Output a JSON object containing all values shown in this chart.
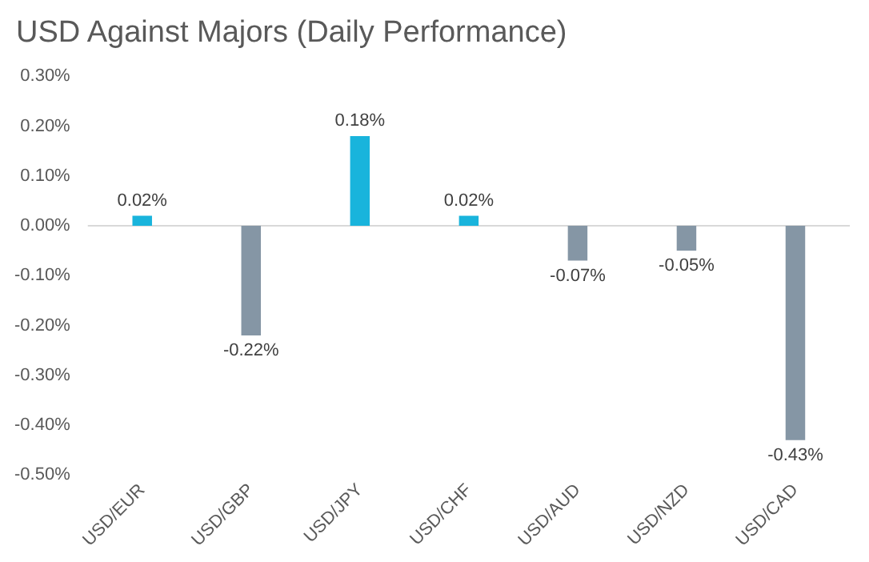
{
  "chart_data": {
    "type": "bar",
    "title": "USD Against Majors (Daily Performance)",
    "categories": [
      "USD/EUR",
      "USD/GBP",
      "USD/JPY",
      "USD/CHF",
      "USD/AUD",
      "USD/NZD",
      "USD/CAD"
    ],
    "values": [
      0.02,
      -0.22,
      0.18,
      0.02,
      -0.07,
      -0.05,
      -0.43
    ],
    "colors": [
      "#19b4dc",
      "#8596a5",
      "#19b4dc",
      "#19b4dc",
      "#8596a5",
      "#8596a5",
      "#8596a5"
    ],
    "value_labels": [
      "0.02%",
      "-0.22%",
      "0.18%",
      "0.02%",
      "-0.07%",
      "-0.05%",
      "-0.43%"
    ],
    "ylim": [
      -0.5,
      0.3
    ],
    "yticks": [
      {
        "value": -0.5,
        "label": "-0.50%"
      },
      {
        "value": -0.4,
        "label": "-0.40%"
      },
      {
        "value": -0.3,
        "label": "-0.30%"
      },
      {
        "value": -0.2,
        "label": "-0.20%"
      },
      {
        "value": -0.1,
        "label": "-0.10%"
      },
      {
        "value": 0,
        "label": "0.00%"
      },
      {
        "value": 0.1,
        "label": "0.10%"
      },
      {
        "value": 0.2,
        "label": "0.20%"
      },
      {
        "value": 0.3,
        "label": "0.30%"
      }
    ],
    "ref_lines": [
      {
        "axis": "y",
        "value": 0,
        "color": "#d9d9d9"
      }
    ],
    "grid": false,
    "legend": false
  }
}
